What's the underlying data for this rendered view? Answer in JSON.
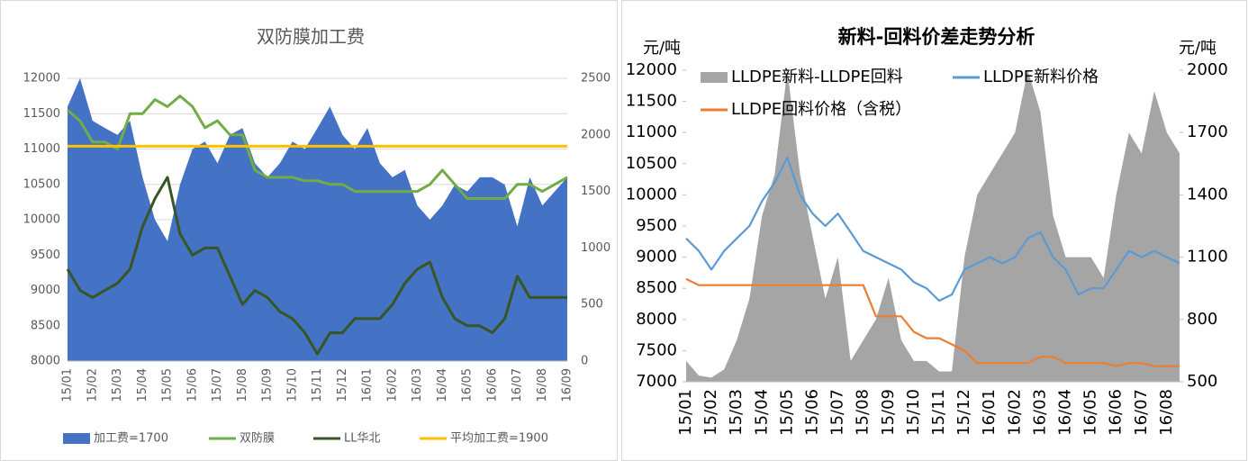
{
  "chart_data": [
    {
      "type": "combo",
      "title": "双防膜加工费",
      "grid": true,
      "legend": "bottom",
      "categories": [
        "15/01",
        null,
        "15/02",
        null,
        "15/03",
        null,
        "15/04",
        null,
        "15/05",
        null,
        "15/06",
        null,
        "15/07",
        null,
        "15/08",
        null,
        "15/09",
        null,
        "15/10",
        null,
        "15/11",
        null,
        "15/12",
        null,
        "16/01",
        null,
        "16/02",
        null,
        "16/03",
        null,
        "16/04",
        null,
        "16/05",
        null,
        "16/06",
        null,
        "16/07",
        null,
        "16/08",
        null,
        "16/09"
      ],
      "ylim": [
        8000,
        12000
      ],
      "yticks": [
        8000,
        8500,
        9000,
        9500,
        10000,
        10500,
        11000,
        11500,
        12000
      ],
      "y2lim": [
        0,
        2500
      ],
      "y2ticks": [
        0,
        500,
        1000,
        1500,
        2000,
        2500
      ],
      "series": [
        {
          "name": "加工费=1700",
          "type": "area",
          "axis": "y2",
          "color": "#4472c4",
          "values": [
            2250,
            2500,
            2125,
            2060,
            2000,
            2125,
            1625,
            1250,
            1060,
            1560,
            1875,
            1940,
            1750,
            2000,
            2060,
            1750,
            1625,
            1750,
            1940,
            1875,
            2060,
            2250,
            2000,
            1875,
            2060,
            1750,
            1625,
            1690,
            1375,
            1250,
            1375,
            1560,
            1500,
            1625,
            1625,
            1560,
            1190,
            1625,
            1375,
            1500,
            1625
          ]
        },
        {
          "name": "双防膜",
          "type": "line",
          "color": "#70ad47",
          "values": [
            11550,
            11400,
            11100,
            11100,
            11000,
            11500,
            11500,
            11700,
            11600,
            11750,
            11600,
            11300,
            11400,
            11200,
            11200,
            10700,
            10600,
            10600,
            10600,
            10550,
            10550,
            10500,
            10500,
            10400,
            10400,
            10400,
            10400,
            10400,
            10400,
            10500,
            10700,
            10500,
            10300,
            10300,
            10300,
            10300,
            10500,
            10500,
            10400,
            10500,
            10600
          ]
        },
        {
          "name": "LL华北",
          "type": "line",
          "color": "#375623",
          "values": [
            9300,
            9000,
            8900,
            9000,
            9100,
            9300,
            9900,
            10300,
            10600,
            9800,
            9500,
            9600,
            9600,
            9200,
            8800,
            9000,
            8900,
            8700,
            8600,
            8400,
            8100,
            8400,
            8400,
            8600,
            8600,
            8600,
            8800,
            9100,
            9300,
            9400,
            8900,
            8600,
            8500,
            8500,
            8400,
            8600,
            9200,
            8900,
            8900,
            8900,
            8900
          ]
        },
        {
          "name": "平均加工费=1900",
          "type": "line",
          "axis": "y2",
          "color": "#ffc000",
          "values": [
            1900,
            1900,
            1900,
            1900,
            1900,
            1900,
            1900,
            1900,
            1900,
            1900,
            1900,
            1900,
            1900,
            1900,
            1900,
            1900,
            1900,
            1900,
            1900,
            1900,
            1900,
            1900,
            1900,
            1900,
            1900,
            1900,
            1900,
            1900,
            1900,
            1900,
            1900,
            1900,
            1900,
            1900,
            1900,
            1900,
            1900,
            1900,
            1900,
            1900,
            1900
          ]
        }
      ]
    },
    {
      "type": "combo",
      "title": "新料-回料价差走势分析",
      "grid": false,
      "legend": "top",
      "y_label": "元/吨",
      "y2_label": "元/吨",
      "categories": [
        "15/01",
        null,
        "15/02",
        null,
        "15/03",
        null,
        "15/04",
        null,
        "15/05",
        null,
        "15/06",
        null,
        "15/07",
        null,
        "15/08",
        null,
        "15/09",
        null,
        "15/10",
        null,
        "15/11",
        null,
        "15/12",
        null,
        "16/01",
        null,
        "16/02",
        null,
        "16/03",
        null,
        "16/04",
        null,
        "16/05",
        null,
        "16/06",
        null,
        "16/07",
        null,
        "16/08",
        null
      ],
      "ylim": [
        7000,
        12000
      ],
      "yticks": [
        7000,
        7500,
        8000,
        8500,
        9000,
        9500,
        10000,
        10500,
        11000,
        11500,
        12000
      ],
      "y2lim": [
        500,
        2000
      ],
      "y2ticks": [
        500,
        800,
        1100,
        1400,
        1700,
        2000
      ],
      "series": [
        {
          "name": "LLDPE新料-LLDPE回料",
          "type": "area",
          "axis": "y2",
          "color": "#a5a5a5",
          "values": [
            600,
            530,
            520,
            560,
            700,
            900,
            1300,
            1500,
            2000,
            1500,
            1200,
            900,
            1100,
            600,
            700,
            800,
            1000,
            700,
            600,
            600,
            550,
            550,
            1100,
            1400,
            1500,
            1600,
            1700,
            2000,
            1800,
            1300,
            1100,
            1100,
            1100,
            1000,
            1400,
            1700,
            1600,
            1900,
            1700,
            1600
          ]
        },
        {
          "name": "LLDPE新料价格",
          "type": "line",
          "color": "#5b9bd5",
          "values": [
            9300,
            9100,
            8800,
            9100,
            9300,
            9500,
            9900,
            10200,
            10600,
            10000,
            9700,
            9500,
            9700,
            9400,
            9100,
            9000,
            8900,
            8800,
            8600,
            8500,
            8300,
            8400,
            8800,
            8900,
            9000,
            8900,
            9000,
            9300,
            9400,
            9000,
            8800,
            8400,
            8500,
            8500,
            8800,
            9100,
            9000,
            9100,
            9000,
            8900
          ]
        },
        {
          "name": "LLDPE回料价格（含税）",
          "type": "line",
          "color": "#ed7d31",
          "values": [
            8650,
            8550,
            8550,
            8550,
            8550,
            8550,
            8550,
            8550,
            8550,
            8550,
            8550,
            8550,
            8550,
            8550,
            8550,
            8050,
            8050,
            8050,
            7800,
            7700,
            7700,
            7600,
            7500,
            7300,
            7300,
            7300,
            7300,
            7300,
            7400,
            7400,
            7300,
            7300,
            7300,
            7300,
            7250,
            7300,
            7300,
            7250,
            7250,
            7250
          ]
        }
      ]
    }
  ]
}
